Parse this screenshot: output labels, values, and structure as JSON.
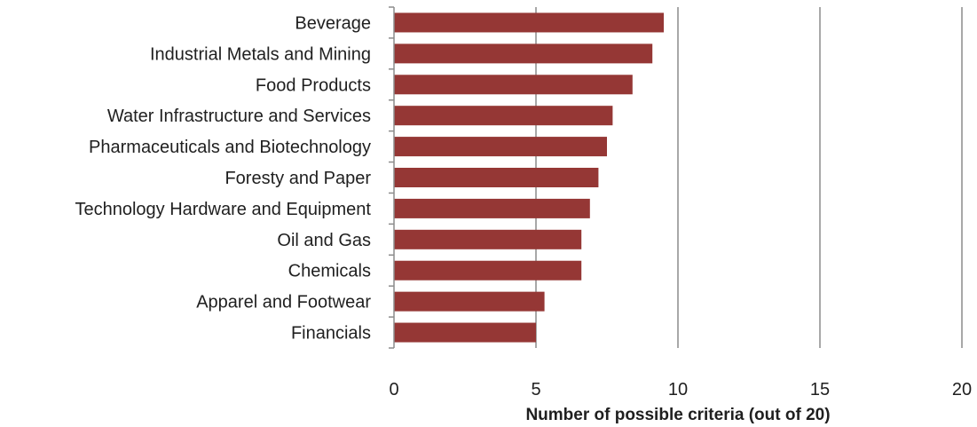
{
  "chart_data": {
    "type": "bar",
    "orientation": "horizontal",
    "title": "",
    "xlabel": "Number of possible criteria (out of 20)",
    "ylabel": "",
    "xlim": [
      0,
      20
    ],
    "xticks": [
      0,
      5,
      10,
      15,
      20
    ],
    "grid": "vertical",
    "legend": "none",
    "bar_color": "#953735",
    "categories": [
      "Beverage",
      "Industrial Metals and Mining",
      "Food Products",
      "Water Infrastructure and Services",
      "Pharmaceuticals and Biotechnology",
      "Foresty and Paper",
      "Technology Hardware and Equipment",
      "Oil and Gas",
      "Chemicals",
      "Apparel and Footwear",
      "Financials"
    ],
    "values": [
      9.5,
      9.1,
      8.4,
      7.7,
      7.5,
      7.2,
      6.9,
      6.6,
      6.6,
      5.3,
      5.0
    ]
  }
}
